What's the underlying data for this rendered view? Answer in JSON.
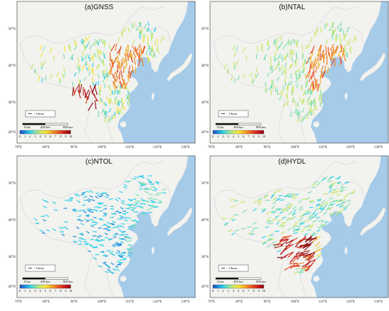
{
  "panels": [
    {
      "title": "(a)GNSS",
      "pattern": "gnss"
    },
    {
      "title": "(b)NTAL",
      "pattern": "ntal"
    },
    {
      "title": "(c)NTOL",
      "pattern": "ntol"
    },
    {
      "title": "(d)HYDL",
      "pattern": "hydl"
    }
  ],
  "lat_labels": [
    "50°N",
    "40°N",
    "30°N",
    "20°N"
  ],
  "lon_labels": [
    "70°E",
    "80°E",
    "90°E",
    "100°E",
    "110°E",
    "120°E",
    "130°E"
  ],
  "legend": {
    "arrow_label": "> 10mm",
    "scale_labels": [
      "0 km",
      "400 km",
      "800 km"
    ],
    "colorbar_ticks": [
      "0",
      "1",
      "2",
      "3",
      "4",
      "5",
      "6",
      "7",
      "8",
      "9",
      "10"
    ]
  },
  "colors": {
    "land": "#f2f2ef",
    "sea": "#a6cbe9",
    "colorbar": [
      "#1f4fbf",
      "#1f8fe0",
      "#2fd0e8",
      "#7fe0b0",
      "#c9e86a",
      "#f5e63a",
      "#f5b52a",
      "#f07a22",
      "#e04420",
      "#c21a1a",
      "#8e0e14"
    ]
  }
}
